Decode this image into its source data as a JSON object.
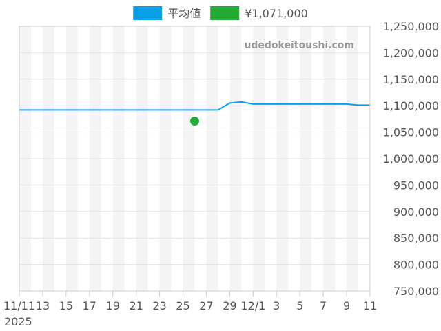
{
  "chart_data": {
    "type": "line",
    "watermark": "udedokeitoushi.com",
    "legend_position": "top",
    "grid": true,
    "x_tick_labels": [
      "11/11",
      "13",
      "15",
      "17",
      "19",
      "21",
      "23",
      "25",
      "27",
      "29",
      "12/1",
      "3",
      "5",
      "7",
      "9",
      "11"
    ],
    "x_year_label": "2025",
    "x_categories": [
      "11/11",
      "11/12",
      "11/13",
      "11/14",
      "11/15",
      "11/16",
      "11/17",
      "11/18",
      "11/19",
      "11/20",
      "11/21",
      "11/22",
      "11/23",
      "11/24",
      "11/25",
      "11/26",
      "11/27",
      "11/28",
      "11/29",
      "11/30",
      "12/1",
      "12/2",
      "12/3",
      "12/4",
      "12/5",
      "12/6",
      "12/7",
      "12/8",
      "12/9",
      "12/10",
      "12/11"
    ],
    "ylim": [
      750000,
      1250000
    ],
    "y_ticks": [
      750000,
      800000,
      850000,
      900000,
      950000,
      1000000,
      1050000,
      1100000,
      1150000,
      1200000,
      1250000
    ],
    "y_tick_labels": [
      "750,000",
      "800,000",
      "850,000",
      "900,000",
      "950,000",
      "1,000,000",
      "1,050,000",
      "1,100,000",
      "1,150,000",
      "1,200,000",
      "1,250,000"
    ],
    "series": [
      {
        "name": "平均値",
        "kind": "line",
        "color": "#0aa0e6",
        "values": [
          1092000,
          1092000,
          1092000,
          1092000,
          1092000,
          1092000,
          1092000,
          1092000,
          1092000,
          1092000,
          1092000,
          1092000,
          1092000,
          1092000,
          1092000,
          1092000,
          1092000,
          1092000,
          1105000,
          1107000,
          1103000,
          1103000,
          1103000,
          1103000,
          1103000,
          1103000,
          1103000,
          1103000,
          1103000,
          1101000,
          1101000
        ]
      },
      {
        "name": "¥1,071,000",
        "kind": "point",
        "color": "#22aa33",
        "points": [
          {
            "x": "11/26",
            "y": 1071000
          }
        ]
      }
    ]
  }
}
